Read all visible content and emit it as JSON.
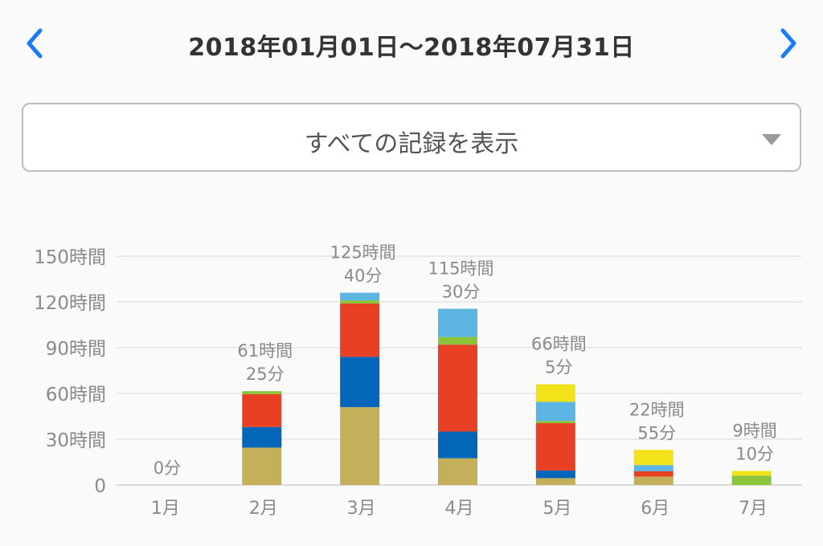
{
  "header": {
    "title": "2018年01月01日〜2018年07月31日",
    "prev_icon": "chevron-left-icon",
    "next_icon": "chevron-right-icon"
  },
  "filter": {
    "label": "すべての記録を表示",
    "dropdown_icon": "triangle-down-icon"
  },
  "colors": {
    "accent": "#1a7cf5",
    "olive": "#c4b05a",
    "blue": "#0466b8",
    "red": "#e84024",
    "green": "#8cc43a",
    "lightblue": "#5cb5e3",
    "yellow": "#f2e21a"
  },
  "chart_data": {
    "type": "bar",
    "stacked": true,
    "categories": [
      "1月",
      "2月",
      "3月",
      "4月",
      "5月",
      "6月",
      "7月"
    ],
    "yticks": [
      "0",
      "30時間",
      "60時間",
      "90時間",
      "120時間",
      "150時間"
    ],
    "ylim": [
      0,
      150
    ],
    "grid": true,
    "totals": [
      [
        "0分"
      ],
      [
        "61時間",
        "25分"
      ],
      [
        "125時間",
        "40分"
      ],
      [
        "115時間",
        "30分"
      ],
      [
        "66時間",
        "5分"
      ],
      [
        "22時間",
        "55分"
      ],
      [
        "9時間",
        "10分"
      ]
    ],
    "series": [
      {
        "color": "#c4b05a",
        "values": [
          0,
          24.5,
          51,
          17.5,
          4.5,
          5.5,
          0
        ]
      },
      {
        "color": "#0466b8",
        "values": [
          0,
          13.5,
          33,
          17.5,
          5,
          0,
          0
        ]
      },
      {
        "color": "#e84024",
        "values": [
          0,
          21.5,
          35,
          57,
          31,
          3.5,
          0
        ]
      },
      {
        "color": "#8cc43a",
        "values": [
          0,
          2,
          2,
          5,
          1.5,
          0,
          6.2
        ]
      },
      {
        "color": "#5cb5e3",
        "values": [
          0,
          0,
          5,
          18.5,
          12.5,
          4,
          0
        ]
      },
      {
        "color": "#f2e21a",
        "values": [
          0,
          0,
          0,
          0,
          11.5,
          10,
          3
        ]
      }
    ]
  }
}
